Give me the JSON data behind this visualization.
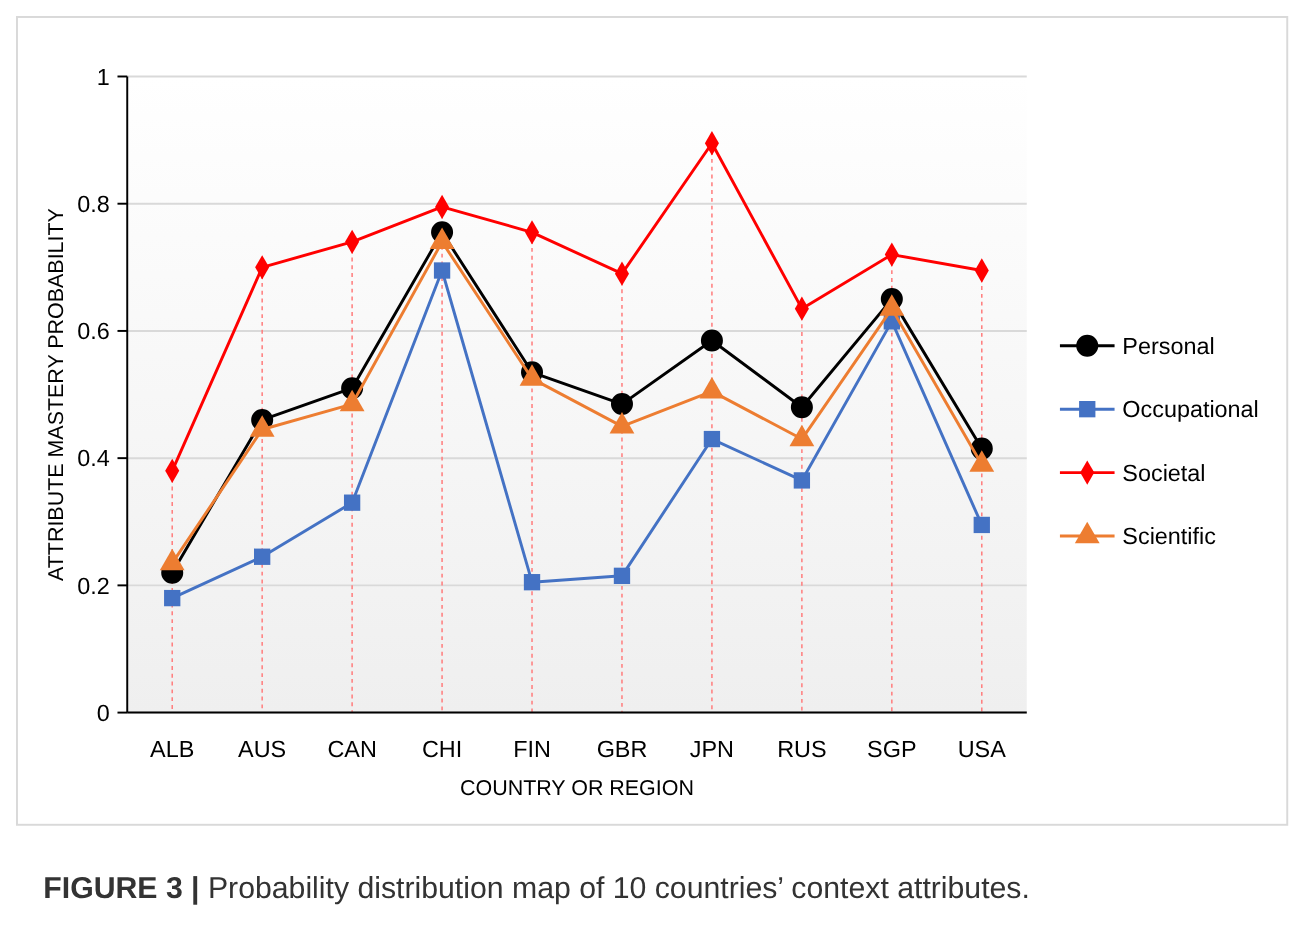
{
  "chart_data": {
    "type": "line",
    "xlabel": "COUNTRY OR REGION",
    "ylabel": "ATTRIBUTE MASTERY PROBABILITY",
    "categories": [
      "ALB",
      "AUS",
      "CAN",
      "CHI",
      "FIN",
      "GBR",
      "JPN",
      "RUS",
      "SGP",
      "USA"
    ],
    "series": [
      {
        "name": "Personal",
        "color": "#000000",
        "marker": "circle",
        "values": [
          0.22,
          0.46,
          0.51,
          0.755,
          0.535,
          0.485,
          0.585,
          0.48,
          0.65,
          0.415
        ]
      },
      {
        "name": "Occupational",
        "color": "#4472c4",
        "marker": "square",
        "values": [
          0.18,
          0.245,
          0.33,
          0.695,
          0.205,
          0.215,
          0.43,
          0.365,
          0.615,
          0.295
        ]
      },
      {
        "name": "Societal",
        "color": "#ff0000",
        "marker": "diamond",
        "values": [
          0.38,
          0.7,
          0.74,
          0.795,
          0.755,
          0.69,
          0.895,
          0.635,
          0.72,
          0.695
        ]
      },
      {
        "name": "Scientific",
        "color": "#ed7d31",
        "marker": "triangle",
        "values": [
          0.235,
          0.445,
          0.485,
          0.74,
          0.525,
          0.45,
          0.505,
          0.43,
          0.635,
          0.39
        ]
      }
    ],
    "ylim": [
      0,
      1
    ],
    "yticks": [
      0,
      0.2,
      0.4,
      0.6,
      0.8,
      {
        "value": 1,
        "label": "1"
      }
    ],
    "grid": "y",
    "legend": "right",
    "ref_lines": [
      {
        "axis": "x",
        "value": "ALB",
        "color": "#ff8080",
        "line_style": "dotted"
      },
      {
        "axis": "x",
        "value": "AUS",
        "color": "#ff8080",
        "line_style": "dotted"
      },
      {
        "axis": "x",
        "value": "CAN",
        "color": "#ff8080",
        "line_style": "dotted"
      },
      {
        "axis": "x",
        "value": "CHI",
        "color": "#ff8080",
        "line_style": "dotted"
      },
      {
        "axis": "x",
        "value": "FIN",
        "color": "#ff8080",
        "line_style": "dotted"
      },
      {
        "axis": "x",
        "value": "GBR",
        "color": "#ff8080",
        "line_style": "dotted"
      },
      {
        "axis": "x",
        "value": "JPN",
        "color": "#ff8080",
        "line_style": "dotted"
      },
      {
        "axis": "x",
        "value": "RUS",
        "color": "#ff8080",
        "line_style": "dotted"
      },
      {
        "axis": "x",
        "value": "SGP",
        "color": "#ff8080",
        "line_style": "dotted"
      },
      {
        "axis": "x",
        "value": "USA",
        "color": "#ff8080",
        "line_style": "dotted"
      }
    ],
    "annotations": [
      "FIGURE 3 | Probability distribution map of 10 countries’ context attributes."
    ]
  }
}
